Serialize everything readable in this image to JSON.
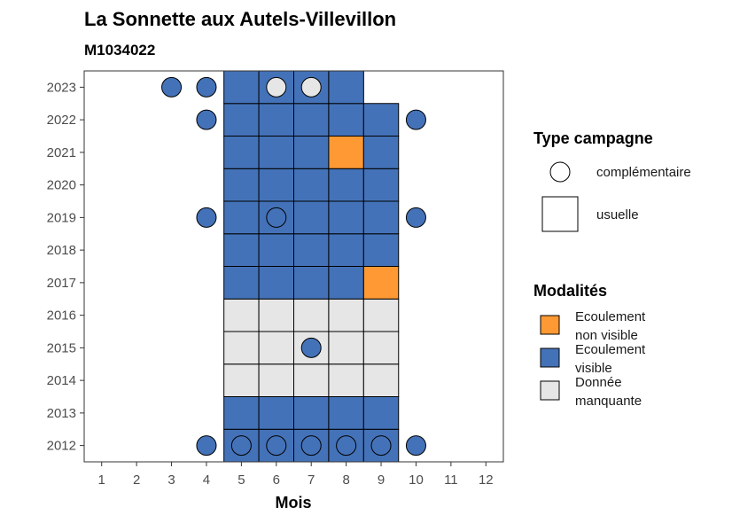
{
  "chart_data": {
    "type": "heatmap",
    "title": "La Sonnette aux Autels-Villevillon",
    "subtitle": "M1034022",
    "xlabel": "Mois",
    "ylabel": "",
    "x_ticks": [
      "1",
      "2",
      "3",
      "4",
      "5",
      "6",
      "7",
      "8",
      "9",
      "10",
      "11",
      "12"
    ],
    "y_ticks": [
      "2012",
      "2013",
      "2014",
      "2015",
      "2016",
      "2017",
      "2018",
      "2019",
      "2020",
      "2021",
      "2022",
      "2023"
    ],
    "xlim": [
      0.5,
      12.5
    ],
    "ylim": [
      2011.5,
      2023.5
    ],
    "grid": false,
    "colors": {
      "Ecoulement non visible": "#ff9933",
      "Ecoulement visible": "#4472b8",
      "Donnée manquante": "#e6e6e6"
    },
    "legend_position": "right",
    "legend_type": {
      "title": "Type campagne",
      "items": [
        {
          "label": "complémentaire",
          "shape": "circle"
        },
        {
          "label": "usuelle",
          "shape": "square"
        }
      ]
    },
    "legend_modalites": {
      "title": "Modalités",
      "items": [
        {
          "line1": "Ecoulement",
          "line2": "non visible",
          "key": "Ecoulement non visible"
        },
        {
          "line1": "Ecoulement",
          "line2": "visible",
          "key": "Ecoulement visible"
        },
        {
          "line1": "Donnée",
          "line2": "manquante",
          "key": "Donnée manquante"
        }
      ]
    },
    "usuelle": [
      {
        "year": 2012,
        "month": 5,
        "modalite": "Ecoulement visible"
      },
      {
        "year": 2012,
        "month": 6,
        "modalite": "Ecoulement visible"
      },
      {
        "year": 2012,
        "month": 7,
        "modalite": "Ecoulement visible"
      },
      {
        "year": 2012,
        "month": 8,
        "modalite": "Ecoulement visible"
      },
      {
        "year": 2012,
        "month": 9,
        "modalite": "Ecoulement visible"
      },
      {
        "year": 2013,
        "month": 5,
        "modalite": "Ecoulement visible"
      },
      {
        "year": 2013,
        "month": 6,
        "modalite": "Ecoulement visible"
      },
      {
        "year": 2013,
        "month": 7,
        "modalite": "Ecoulement visible"
      },
      {
        "year": 2013,
        "month": 8,
        "modalite": "Ecoulement visible"
      },
      {
        "year": 2013,
        "month": 9,
        "modalite": "Ecoulement visible"
      },
      {
        "year": 2014,
        "month": 5,
        "modalite": "Donnée manquante"
      },
      {
        "year": 2014,
        "month": 6,
        "modalite": "Donnée manquante"
      },
      {
        "year": 2014,
        "month": 7,
        "modalite": "Donnée manquante"
      },
      {
        "year": 2014,
        "month": 8,
        "modalite": "Donnée manquante"
      },
      {
        "year": 2014,
        "month": 9,
        "modalite": "Donnée manquante"
      },
      {
        "year": 2015,
        "month": 5,
        "modalite": "Donnée manquante"
      },
      {
        "year": 2015,
        "month": 6,
        "modalite": "Donnée manquante"
      },
      {
        "year": 2015,
        "month": 7,
        "modalite": "Donnée manquante"
      },
      {
        "year": 2015,
        "month": 8,
        "modalite": "Donnée manquante"
      },
      {
        "year": 2015,
        "month": 9,
        "modalite": "Donnée manquante"
      },
      {
        "year": 2016,
        "month": 5,
        "modalite": "Donnée manquante"
      },
      {
        "year": 2016,
        "month": 6,
        "modalite": "Donnée manquante"
      },
      {
        "year": 2016,
        "month": 7,
        "modalite": "Donnée manquante"
      },
      {
        "year": 2016,
        "month": 8,
        "modalite": "Donnée manquante"
      },
      {
        "year": 2016,
        "month": 9,
        "modalite": "Donnée manquante"
      },
      {
        "year": 2017,
        "month": 5,
        "modalite": "Ecoulement visible"
      },
      {
        "year": 2017,
        "month": 6,
        "modalite": "Ecoulement visible"
      },
      {
        "year": 2017,
        "month": 7,
        "modalite": "Ecoulement visible"
      },
      {
        "year": 2017,
        "month": 8,
        "modalite": "Ecoulement visible"
      },
      {
        "year": 2017,
        "month": 9,
        "modalite": "Ecoulement non visible"
      },
      {
        "year": 2018,
        "month": 5,
        "modalite": "Ecoulement visible"
      },
      {
        "year": 2018,
        "month": 6,
        "modalite": "Ecoulement visible"
      },
      {
        "year": 2018,
        "month": 7,
        "modalite": "Ecoulement visible"
      },
      {
        "year": 2018,
        "month": 8,
        "modalite": "Ecoulement visible"
      },
      {
        "year": 2018,
        "month": 9,
        "modalite": "Ecoulement visible"
      },
      {
        "year": 2019,
        "month": 5,
        "modalite": "Ecoulement visible"
      },
      {
        "year": 2019,
        "month": 6,
        "modalite": "Ecoulement visible"
      },
      {
        "year": 2019,
        "month": 7,
        "modalite": "Ecoulement visible"
      },
      {
        "year": 2019,
        "month": 8,
        "modalite": "Ecoulement visible"
      },
      {
        "year": 2019,
        "month": 9,
        "modalite": "Ecoulement visible"
      },
      {
        "year": 2020,
        "month": 5,
        "modalite": "Ecoulement visible"
      },
      {
        "year": 2020,
        "month": 6,
        "modalite": "Ecoulement visible"
      },
      {
        "year": 2020,
        "month": 7,
        "modalite": "Ecoulement visible"
      },
      {
        "year": 2020,
        "month": 8,
        "modalite": "Ecoulement visible"
      },
      {
        "year": 2020,
        "month": 9,
        "modalite": "Ecoulement visible"
      },
      {
        "year": 2021,
        "month": 5,
        "modalite": "Ecoulement visible"
      },
      {
        "year": 2021,
        "month": 6,
        "modalite": "Ecoulement visible"
      },
      {
        "year": 2021,
        "month": 7,
        "modalite": "Ecoulement visible"
      },
      {
        "year": 2021,
        "month": 8,
        "modalite": "Ecoulement non visible"
      },
      {
        "year": 2021,
        "month": 9,
        "modalite": "Ecoulement visible"
      },
      {
        "year": 2022,
        "month": 5,
        "modalite": "Ecoulement visible"
      },
      {
        "year": 2022,
        "month": 6,
        "modalite": "Ecoulement visible"
      },
      {
        "year": 2022,
        "month": 7,
        "modalite": "Ecoulement visible"
      },
      {
        "year": 2022,
        "month": 8,
        "modalite": "Ecoulement visible"
      },
      {
        "year": 2022,
        "month": 9,
        "modalite": "Ecoulement visible"
      },
      {
        "year": 2023,
        "month": 5,
        "modalite": "Ecoulement visible"
      },
      {
        "year": 2023,
        "month": 6,
        "modalite": "Ecoulement visible"
      },
      {
        "year": 2023,
        "month": 7,
        "modalite": "Ecoulement visible"
      },
      {
        "year": 2023,
        "month": 8,
        "modalite": "Ecoulement visible"
      }
    ],
    "complementaire": [
      {
        "year": 2012,
        "month": 4,
        "modalite": "Ecoulement visible"
      },
      {
        "year": 2012,
        "month": 5,
        "modalite": "Ecoulement visible"
      },
      {
        "year": 2012,
        "month": 6,
        "modalite": "Ecoulement visible"
      },
      {
        "year": 2012,
        "month": 7,
        "modalite": "Ecoulement visible"
      },
      {
        "year": 2012,
        "month": 8,
        "modalite": "Ecoulement visible"
      },
      {
        "year": 2012,
        "month": 9,
        "modalite": "Ecoulement visible"
      },
      {
        "year": 2012,
        "month": 10,
        "modalite": "Ecoulement visible"
      },
      {
        "year": 2015,
        "month": 7,
        "modalite": "Ecoulement visible"
      },
      {
        "year": 2019,
        "month": 4,
        "modalite": "Ecoulement visible"
      },
      {
        "year": 2019,
        "month": 6,
        "modalite": "Ecoulement visible"
      },
      {
        "year": 2019,
        "month": 10,
        "modalite": "Ecoulement visible"
      },
      {
        "year": 2022,
        "month": 4,
        "modalite": "Ecoulement visible"
      },
      {
        "year": 2022,
        "month": 10,
        "modalite": "Ecoulement visible"
      },
      {
        "year": 2023,
        "month": 3,
        "modalite": "Ecoulement visible"
      },
      {
        "year": 2023,
        "month": 4,
        "modalite": "Ecoulement visible"
      },
      {
        "year": 2023,
        "month": 6,
        "modalite": "Donnée manquante"
      },
      {
        "year": 2023,
        "month": 7,
        "modalite": "Donnée manquante"
      }
    ]
  }
}
